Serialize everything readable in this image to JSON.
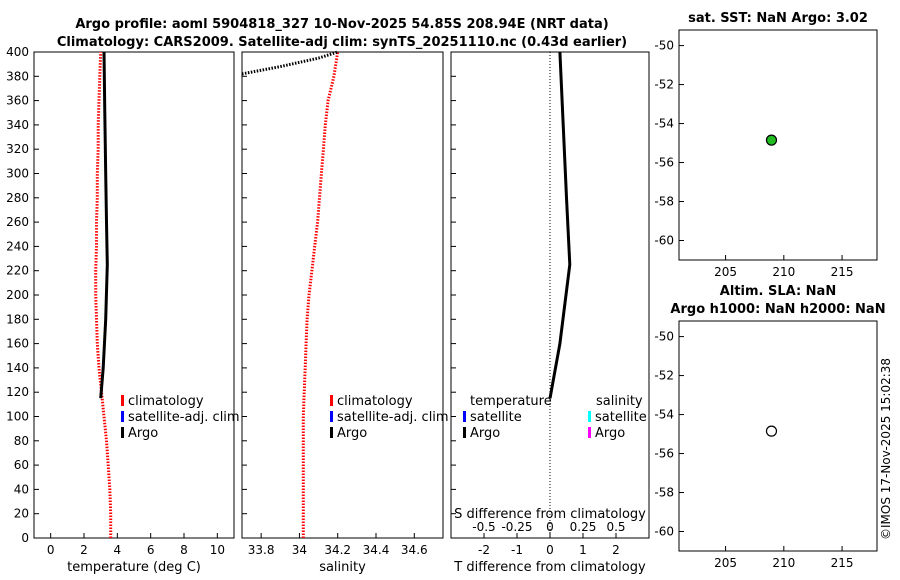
{
  "header": {
    "line1": "Argo profile: aoml 5904818_327 10-Nov-2025 54.85S 208.94E (NRT data)",
    "line2": "Climatology: CARS2009. Satellite-adj clim: synTS_20251110.nc (0.43d earlier)"
  },
  "watermark": "©IMOS 17-Nov-2025 15:02:38",
  "colors": {
    "climatology": "#ff0000",
    "satellite_adj": "#0000ff",
    "argo": "#000000",
    "salinity_satellite": "#00ffff",
    "salinity_argo": "#ff00ff",
    "marker_green": "#22bb22"
  },
  "chart_data": [
    {
      "type": "line",
      "id": "temperature",
      "xlabel": "temperature (deg C)",
      "ylabel": "",
      "xlim": [
        -1,
        11
      ],
      "ylim": [
        400,
        0
      ],
      "xticks": [
        "0",
        "2",
        "4",
        "6",
        "8",
        "10"
      ],
      "yticks": [
        "0",
        "20",
        "40",
        "60",
        "80",
        "100",
        "120",
        "140",
        "160",
        "180",
        "200",
        "220",
        "240",
        "260",
        "280",
        "300",
        "320",
        "340",
        "360",
        "380",
        "400"
      ],
      "legend": [
        "climatology",
        "satellite-adj. clim",
        "Argo"
      ],
      "series": [
        {
          "name": "climatology",
          "style": "dotted",
          "color": "#ff0000",
          "x": [
            3.6,
            3.6,
            3.55,
            3.45,
            3.35,
            3.2,
            3.05,
            2.9,
            2.8,
            2.75,
            2.7,
            2.7,
            2.75,
            2.75,
            2.8,
            2.8,
            2.85,
            2.85,
            2.9,
            2.95,
            3.0
          ],
          "y": [
            0,
            20,
            40,
            60,
            80,
            100,
            120,
            140,
            160,
            180,
            200,
            220,
            240,
            260,
            280,
            300,
            320,
            340,
            360,
            380,
            400
          ]
        },
        {
          "name": "Argo",
          "style": "solid",
          "color": "#000000",
          "x": [
            3.0,
            3.15,
            3.3,
            3.4,
            3.35,
            3.3,
            3.25,
            3.2
          ],
          "y": [
            115,
            140,
            180,
            225,
            260,
            300,
            350,
            400
          ]
        }
      ]
    },
    {
      "type": "line",
      "id": "salinity",
      "xlabel": "salinity",
      "ylabel": "",
      "xlim": [
        33.7,
        34.75
      ],
      "ylim": [
        400,
        0
      ],
      "xticks": [
        "33.8",
        "34",
        "34.2",
        "34.4",
        "34.6"
      ],
      "legend": [
        "climatology",
        "satellite-adj. clim",
        "Argo"
      ],
      "series": [
        {
          "name": "climatology",
          "style": "dotted",
          "color": "#ff0000",
          "x": [
            34.02,
            34.02,
            34.02,
            34.02,
            34.02,
            34.02,
            34.025,
            34.03,
            34.035,
            34.04,
            34.05,
            34.065,
            34.08,
            34.095,
            34.105,
            34.115,
            34.125,
            34.135,
            34.15,
            34.18,
            34.2
          ],
          "y": [
            0,
            20,
            40,
            60,
            80,
            100,
            120,
            140,
            160,
            180,
            200,
            220,
            240,
            260,
            280,
            300,
            320,
            340,
            360,
            380,
            400
          ]
        },
        {
          "name": "Argo",
          "style": "dotted",
          "color": "#000000",
          "x": [
            33.7,
            33.9,
            34.1,
            34.2
          ],
          "y": [
            382,
            388,
            395,
            400
          ]
        }
      ]
    },
    {
      "type": "line",
      "id": "difference",
      "xlabel": "T difference from climatology",
      "top_xlabel": "S difference from climatology",
      "xlim": [
        -3,
        3
      ],
      "ylim": [
        400,
        0
      ],
      "xticks": [
        "-2",
        "-1",
        "0",
        "1",
        "2"
      ],
      "top_xticks": [
        "-0.5",
        "-0.25",
        "0",
        "0.25",
        "0.5"
      ],
      "legend_left": [
        "temperature",
        "satellite",
        "Argo"
      ],
      "legend_right": [
        "salinity",
        "satellite",
        "Argo"
      ],
      "series": [
        {
          "name": "Argo",
          "style": "solid",
          "color": "#000000",
          "x": [
            0,
            0.3,
            0.6,
            0.5,
            0.4,
            0.3
          ],
          "y": [
            115,
            160,
            225,
            280,
            340,
            400
          ]
        }
      ]
    },
    {
      "type": "scatter",
      "id": "sat_sst_map",
      "title": "sat. SST: NaN Argo: 3.02",
      "xlim": [
        201,
        218
      ],
      "ylim": [
        -61,
        -49.2
      ],
      "xticks": [
        "205",
        "210",
        "215"
      ],
      "yticks": [
        "-50",
        "-52",
        "-54",
        "-56",
        "-58",
        "-60"
      ],
      "points": [
        {
          "x": 208.94,
          "y": -54.85,
          "fill": "#22bb22"
        }
      ]
    },
    {
      "type": "scatter",
      "id": "altim_map",
      "title": "Altim. SLA: NaN",
      "title2": "Argo h1000: NaN h2000: NaN",
      "xlim": [
        201,
        218
      ],
      "ylim": [
        -61,
        -49.2
      ],
      "xticks": [
        "205",
        "210",
        "215"
      ],
      "yticks": [
        "-50",
        "-52",
        "-54",
        "-56",
        "-58",
        "-60"
      ],
      "points": [
        {
          "x": 208.94,
          "y": -54.85,
          "fill": "#ffffff"
        }
      ]
    }
  ]
}
